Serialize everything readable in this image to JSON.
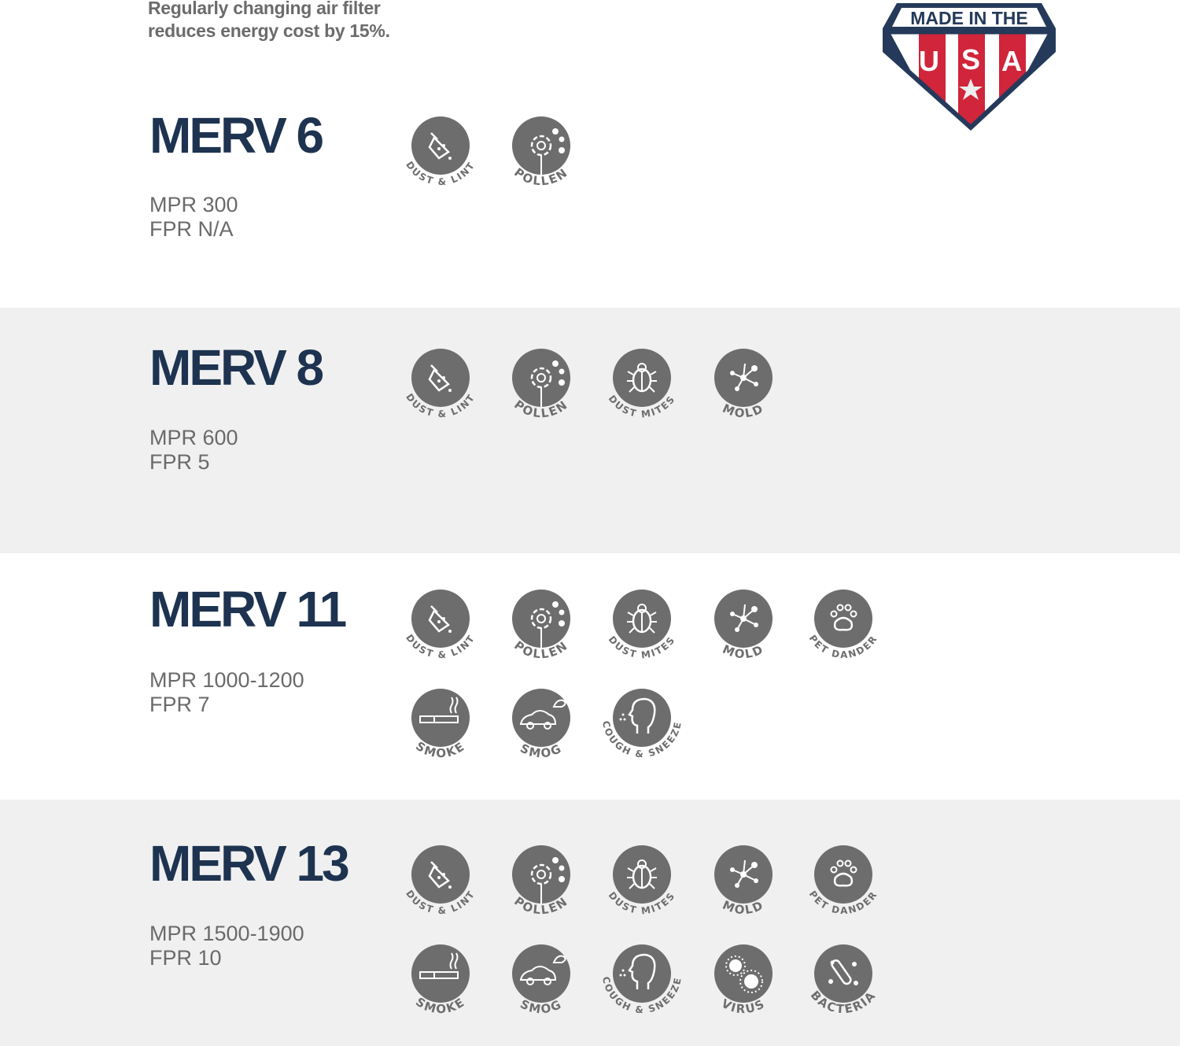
{
  "tagline": {
    "line1": "Regularly changing air filter",
    "line2": "reduces energy cost by 15%."
  },
  "badge": {
    "top_text": "MADE IN THE",
    "letters": [
      "U",
      "S",
      "A"
    ],
    "colors": {
      "navy": "#253a5a",
      "red": "#d0253a"
    }
  },
  "colors": {
    "title": "#1d3350",
    "icon_fill": "#6d6d6d",
    "label": "#6d6d6d",
    "alt_background": "#f0f0f0"
  },
  "filters": [
    {
      "title": "MERV 6",
      "mpr": "MPR 300",
      "fpr": "FPR N/A",
      "icons": [
        {
          "icon": "dust-lint",
          "label": "DUST & LINT"
        },
        {
          "icon": "pollen",
          "label": "POLLEN"
        }
      ]
    },
    {
      "title": "MERV 8",
      "mpr": "MPR 600",
      "fpr": "FPR 5",
      "icons": [
        {
          "icon": "dust-lint",
          "label": "DUST & LINT"
        },
        {
          "icon": "pollen",
          "label": "POLLEN"
        },
        {
          "icon": "dust-mites",
          "label": "DUST   MITES"
        },
        {
          "icon": "mold",
          "label": "MOLD"
        }
      ]
    },
    {
      "title": "MERV 11",
      "mpr": "MPR 1000-1200",
      "fpr": "FPR 7",
      "icons": [
        {
          "icon": "dust-lint",
          "label": "DUST & LINT"
        },
        {
          "icon": "pollen",
          "label": "POLLEN"
        },
        {
          "icon": "dust-mites",
          "label": "DUST   MITES"
        },
        {
          "icon": "mold",
          "label": "MOLD"
        },
        {
          "icon": "pet-dander",
          "label": "PET  DANDER"
        },
        {
          "icon": "smoke",
          "label": "SMOKE"
        },
        {
          "icon": "smog",
          "label": "SMOG"
        },
        {
          "icon": "cough-sneeze",
          "label": "COUGH & SNEEZE"
        }
      ]
    },
    {
      "title": "MERV 13",
      "mpr": "MPR 1500-1900",
      "fpr": "FPR 10",
      "icons": [
        {
          "icon": "dust-lint",
          "label": "DUST & LINT"
        },
        {
          "icon": "pollen",
          "label": "POLLEN"
        },
        {
          "icon": "dust-mites",
          "label": "DUST   MITES"
        },
        {
          "icon": "mold",
          "label": "MOLD"
        },
        {
          "icon": "pet-dander",
          "label": "PET  DANDER"
        },
        {
          "icon": "smoke",
          "label": "SMOKE"
        },
        {
          "icon": "smog",
          "label": "SMOG"
        },
        {
          "icon": "cough-sneeze",
          "label": "COUGH & SNEEZE"
        },
        {
          "icon": "virus",
          "label": "VIRUS"
        },
        {
          "icon": "bacteria",
          "label": "BACTERIA"
        }
      ]
    }
  ]
}
